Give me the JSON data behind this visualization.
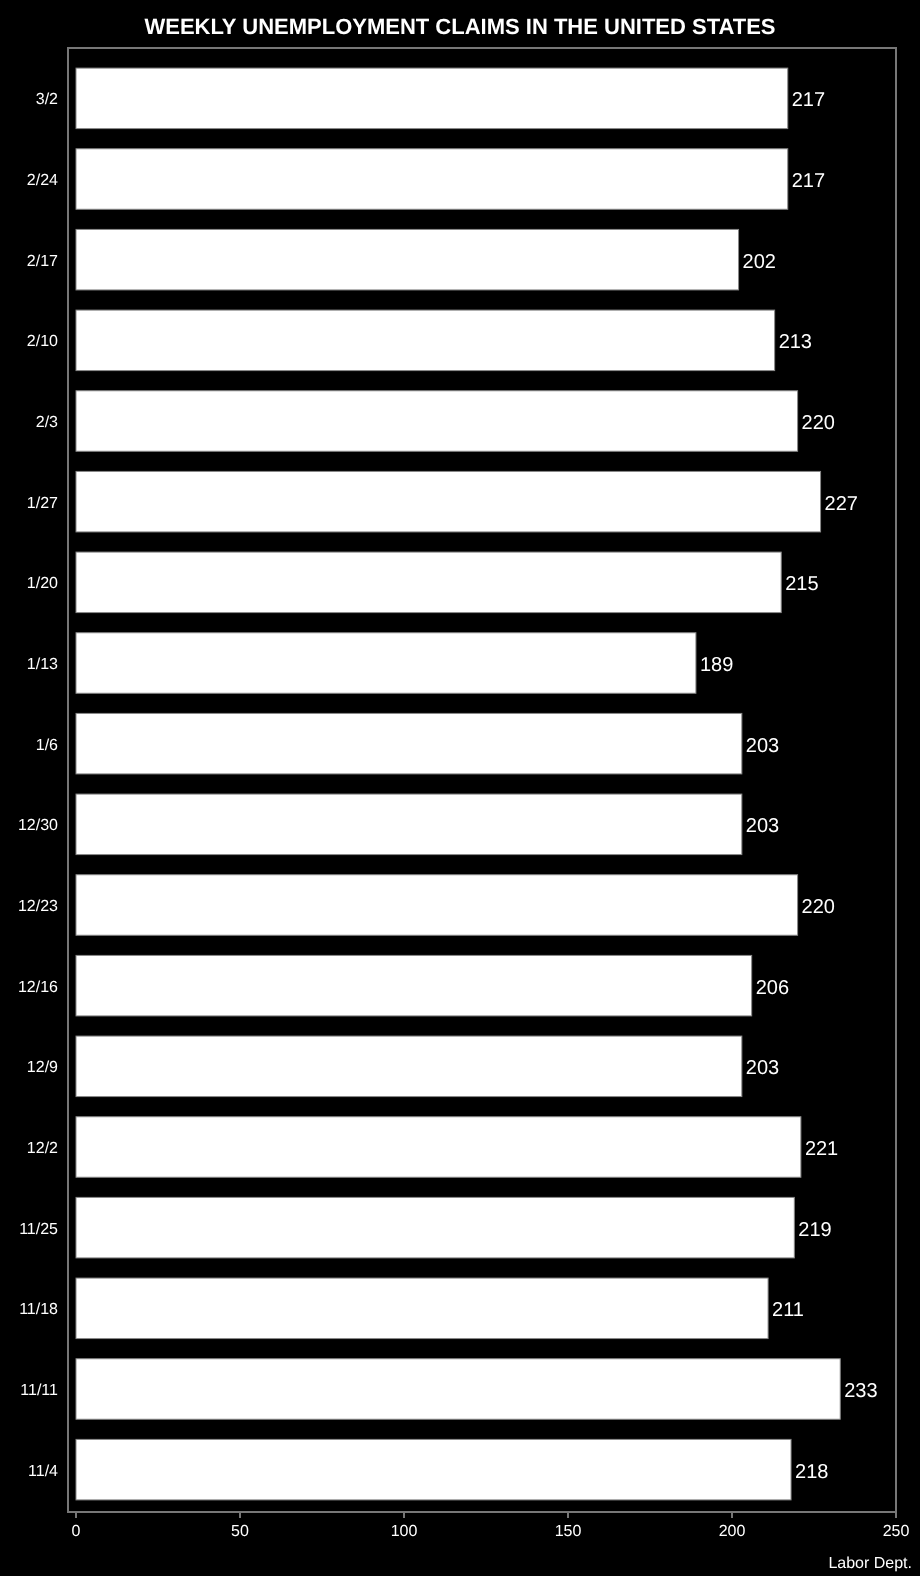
{
  "chart_data": {
    "type": "bar",
    "orientation": "horizontal",
    "title": "WEEKLY UNEMPLOYMENT CLAIMS IN THE UNITED STATES",
    "categories": [
      "3/2",
      "2/24",
      "2/17",
      "2/10",
      "2/3",
      "1/27",
      "1/20",
      "1/13",
      "1/6",
      "12/30",
      "12/23",
      "12/16",
      "12/9",
      "12/2",
      "11/25",
      "11/18",
      "11/11",
      "11/4"
    ],
    "values": [
      217,
      217,
      202,
      213,
      220,
      227,
      215,
      189,
      203,
      203,
      220,
      206,
      203,
      221,
      219,
      211,
      233,
      218
    ],
    "color": "#ffffff",
    "xlim": [
      0,
      250
    ],
    "xticks": [
      0,
      50,
      100,
      150,
      200,
      250
    ],
    "data_labels": true,
    "grid": false,
    "annotations": [
      "Labor Dept."
    ]
  }
}
